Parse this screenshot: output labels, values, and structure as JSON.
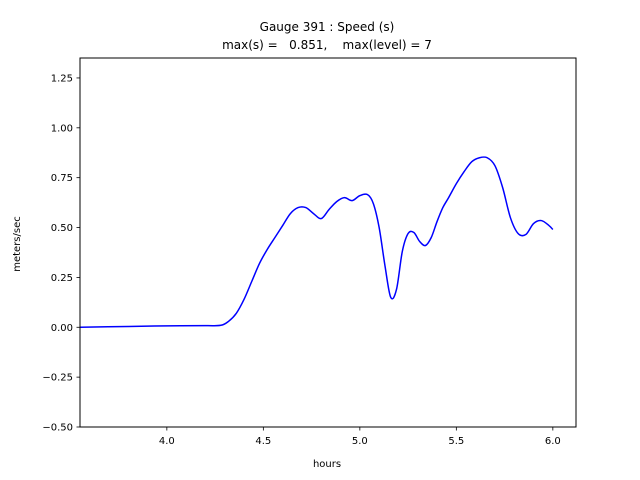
{
  "chart_data": {
    "type": "line",
    "title": "Gauge 391 : Speed (s)",
    "subtitle": "max(s) =   0.851,    max(level) = 7",
    "xlabel": "hours",
    "ylabel": "meters/sec",
    "xlim": [
      3.55,
      6.12
    ],
    "ylim": [
      -0.5,
      1.35
    ],
    "x_ticks": [
      4.0,
      4.5,
      5.0,
      5.5,
      6.0
    ],
    "x_tick_labels": [
      "4.0",
      "4.5",
      "5.0",
      "5.5",
      "6.0"
    ],
    "y_ticks": [
      -0.5,
      -0.25,
      0.0,
      0.25,
      0.5,
      0.75,
      1.0,
      1.25
    ],
    "y_tick_labels": [
      "−0.50",
      "−0.25",
      "0.00",
      "0.25",
      "0.50",
      "0.75",
      "1.00",
      "1.25"
    ],
    "grid": false,
    "line_color": "#0000ff",
    "series": [
      {
        "x": [
          3.55,
          3.8,
          4.0,
          4.2,
          4.28,
          4.32,
          4.36,
          4.4,
          4.44,
          4.48,
          4.52,
          4.56,
          4.6,
          4.64,
          4.68,
          4.72,
          4.76,
          4.8,
          4.84,
          4.88,
          4.92,
          4.96,
          5.0,
          5.04,
          5.07,
          5.1,
          5.13,
          5.16,
          5.19,
          5.22,
          5.25,
          5.28,
          5.31,
          5.34,
          5.37,
          5.4,
          5.43,
          5.46,
          5.5,
          5.54,
          5.58,
          5.62,
          5.66,
          5.7,
          5.74,
          5.78,
          5.82,
          5.86,
          5.9,
          5.94,
          5.98,
          6.0
        ],
        "y": [
          0.0,
          0.004,
          0.007,
          0.008,
          0.01,
          0.03,
          0.07,
          0.14,
          0.23,
          0.32,
          0.39,
          0.45,
          0.51,
          0.57,
          0.6,
          0.6,
          0.57,
          0.545,
          0.59,
          0.63,
          0.65,
          0.635,
          0.66,
          0.665,
          0.62,
          0.5,
          0.31,
          0.15,
          0.19,
          0.38,
          0.47,
          0.475,
          0.43,
          0.41,
          0.45,
          0.53,
          0.6,
          0.65,
          0.72,
          0.78,
          0.83,
          0.85,
          0.85,
          0.81,
          0.7,
          0.55,
          0.47,
          0.465,
          0.52,
          0.535,
          0.51,
          0.49
        ]
      }
    ]
  }
}
